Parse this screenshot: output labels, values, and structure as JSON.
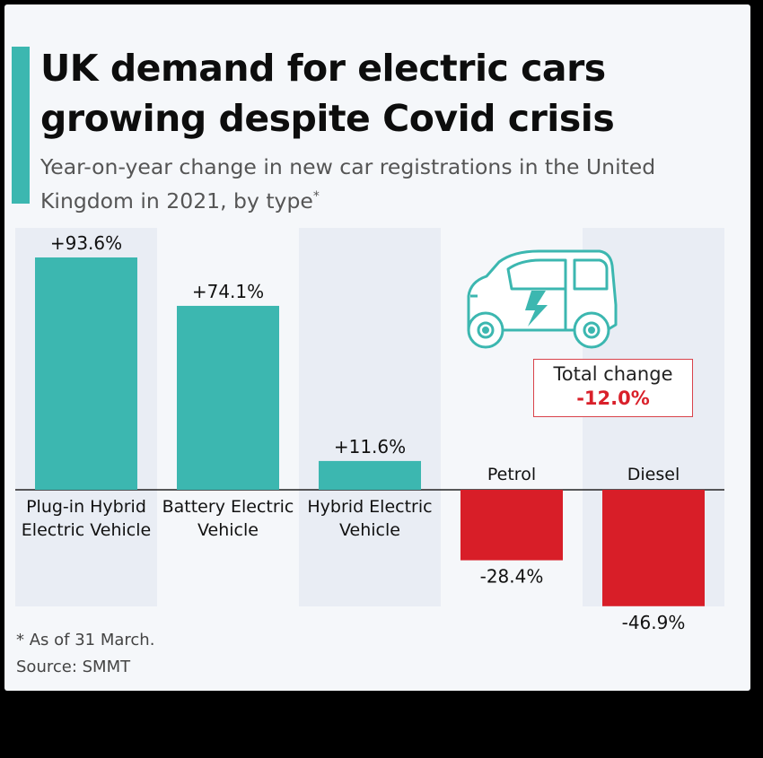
{
  "title": "UK demand for electric cars growing despite Covid crisis",
  "subtitle": "Year-on-year change in new car registrations in the United Kingdom in 2021, by type",
  "subtitle_mark": "*",
  "total_change": {
    "label": "Total change",
    "value": "-12.0%"
  },
  "footnote": "* As of 31 March.",
  "source": "Source: SMMT",
  "colors": {
    "positive": "#3cb7b0",
    "negative": "#d81e28",
    "accent": "#3cb7b0",
    "band": "#e9edf4"
  },
  "icons": [
    "electric-car-icon"
  ],
  "chart_data": {
    "type": "bar",
    "categories": [
      "Plug-in Hybrid Electric Vehicle",
      "Battery Electric Vehicle",
      "Hybrid Electric Vehicle",
      "Petrol",
      "Diesel"
    ],
    "values": [
      93.6,
      74.1,
      11.6,
      -28.4,
      -46.9
    ],
    "data_labels": [
      "+93.6%",
      "+74.1%",
      "+11.6%",
      "-28.4%",
      "-46.9%"
    ],
    "unit": "%",
    "ylim": [
      -46.9,
      93.6
    ],
    "grid": false,
    "legend": "none"
  }
}
